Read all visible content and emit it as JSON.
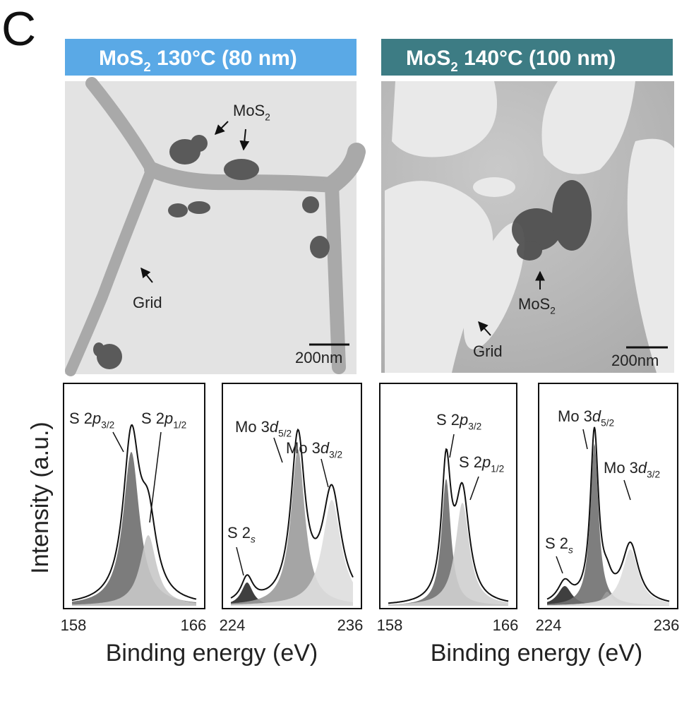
{
  "panel_label": "C",
  "y_axis_label": "Intensity (a.u.)",
  "x_axis_label": "Binding energy (eV)",
  "samples": [
    {
      "header": {
        "compound": "MoS",
        "subscript": "2",
        "condition": " 130°C (80 nm)"
      },
      "tem": {
        "particle_label": {
          "text": "MoS",
          "subscript": "2"
        },
        "grid_label": "Grid",
        "scale_bar": "200nm"
      },
      "spectra": [
        {
          "peaks": [
            {
              "base": "S 2",
              "orbital": "p",
              "subscript": "3/2"
            },
            {
              "base": "S 2",
              "orbital": "p",
              "subscript": "1/2"
            }
          ],
          "xticks": [
            "158",
            "166"
          ]
        },
        {
          "peaks": [
            {
              "base": "S 2",
              "subscript": "s"
            },
            {
              "base": "Mo 3",
              "orbital": "d",
              "subscript": "5/2"
            },
            {
              "base": "Mo 3",
              "orbital": "d",
              "subscript": "3/2"
            }
          ],
          "xticks": [
            "224",
            "236"
          ]
        }
      ]
    },
    {
      "header": {
        "compound": "MoS",
        "subscript": "2",
        "condition": " 140°C (100 nm)"
      },
      "tem": {
        "particle_label": {
          "text": "MoS",
          "subscript": "2"
        },
        "grid_label": "Grid",
        "scale_bar": "200nm"
      },
      "spectra": [
        {
          "peaks": [
            {
              "base": "S 2",
              "orbital": "p",
              "subscript": "3/2"
            },
            {
              "base": "S 2",
              "orbital": "p",
              "subscript": "1/2"
            }
          ],
          "xticks": [
            "158",
            "166"
          ]
        },
        {
          "peaks": [
            {
              "base": "S 2",
              "subscript": "s"
            },
            {
              "base": "Mo 3",
              "orbital": "d",
              "subscript": "5/2"
            },
            {
              "base": "Mo 3",
              "orbital": "d",
              "subscript": "3/2"
            }
          ],
          "xticks": [
            "224",
            "236"
          ]
        }
      ]
    }
  ]
}
